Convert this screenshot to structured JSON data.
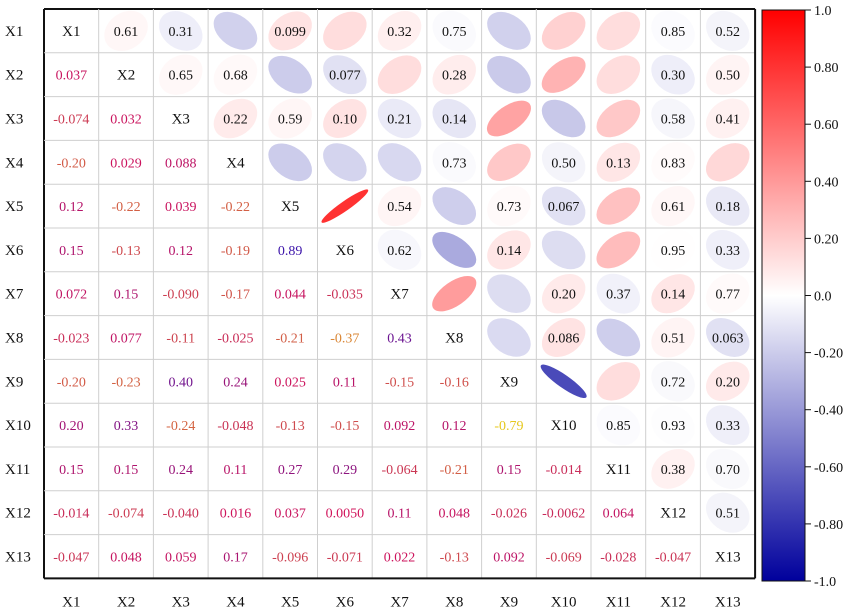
{
  "chart_data": {
    "type": "heatmap",
    "variables": [
      "X1",
      "X2",
      "X3",
      "X4",
      "X5",
      "X6",
      "X7",
      "X8",
      "X9",
      "X10",
      "X11",
      "X12",
      "X13"
    ],
    "lower_correlations": [
      [],
      [
        "0.037"
      ],
      [
        "-0.074",
        "0.032"
      ],
      [
        "-0.20",
        "0.029",
        "0.088"
      ],
      [
        "0.12",
        "-0.22",
        "0.039",
        "-0.22"
      ],
      [
        "0.15",
        "-0.13",
        "0.12",
        "-0.19",
        "0.89"
      ],
      [
        "0.072",
        "0.15",
        "-0.090",
        "-0.17",
        "0.044",
        "-0.035"
      ],
      [
        "-0.023",
        "0.077",
        "-0.11",
        "-0.025",
        "-0.21",
        "-0.37",
        "0.43"
      ],
      [
        "-0.20",
        "-0.23",
        "0.40",
        "0.24",
        "0.025",
        "0.11",
        "-0.15",
        "-0.16"
      ],
      [
        "0.20",
        "0.33",
        "-0.24",
        "-0.048",
        "-0.13",
        "-0.15",
        "0.092",
        "0.12",
        "-0.79"
      ],
      [
        "0.15",
        "0.15",
        "0.24",
        "0.11",
        "0.27",
        "0.29",
        "-0.064",
        "-0.21",
        "0.15",
        "-0.014"
      ],
      [
        "-0.014",
        "-0.074",
        "-0.040",
        "0.016",
        "0.037",
        "0.0050",
        "0.11",
        "0.048",
        "-0.026",
        "-0.0062",
        "0.064"
      ],
      [
        "-0.047",
        "0.048",
        "0.059",
        "0.17",
        "-0.096",
        "-0.071",
        "0.022",
        "-0.13",
        "0.092",
        "-0.069",
        "-0.028",
        "-0.047"
      ]
    ],
    "upper_pvalues": [
      [
        "",
        "0.61",
        "0.31",
        "",
        "0.099",
        "",
        "0.32",
        "0.75",
        "",
        "",
        "",
        "0.85",
        "0.52"
      ],
      [
        "",
        "",
        "0.65",
        "0.68",
        "",
        "0.077",
        "",
        "0.28",
        "",
        "",
        "",
        "0.30",
        "0.50"
      ],
      [
        "",
        "",
        "",
        "0.22",
        "0.59",
        "0.10",
        "0.21",
        "0.14",
        "",
        "",
        "",
        "0.58",
        "0.41"
      ],
      [
        "",
        "",
        "",
        "",
        "",
        "",
        "",
        "0.73",
        "",
        "0.50",
        "0.13",
        "0.83",
        ""
      ],
      [
        "",
        "",
        "",
        "",
        "",
        "",
        "0.54",
        "",
        "0.73",
        "0.067",
        "",
        "0.61",
        "0.18"
      ],
      [
        "",
        "",
        "",
        "",
        "",
        "",
        "0.62",
        "",
        "0.14",
        "",
        "",
        "0.95",
        "0.33"
      ],
      [
        "",
        "",
        "",
        "",
        "",
        "",
        "",
        "",
        "",
        "0.20",
        "0.37",
        "0.14",
        "0.77"
      ],
      [
        "",
        "",
        "",
        "",
        "",
        "",
        "",
        "",
        "",
        "0.086",
        "",
        "0.51",
        "0.063"
      ],
      [
        "",
        "",
        "",
        "",
        "",
        "",
        "",
        "",
        "",
        "",
        "",
        "0.72",
        "0.20"
      ],
      [
        "",
        "",
        "",
        "",
        "",
        "",
        "",
        "",
        "",
        "",
        "0.85",
        "0.93",
        "0.33"
      ],
      [
        "",
        "",
        "",
        "",
        "",
        "",
        "",
        "",
        "",
        "",
        "",
        "0.38",
        "0.70"
      ],
      [
        "",
        "",
        "",
        "",
        "",
        "",
        "",
        "",
        "",
        "",
        "",
        "",
        "0.51"
      ],
      [
        "",
        "",
        "",
        "",
        "",
        "",
        "",
        "",
        "",
        "",
        "",
        "",
        ""
      ]
    ],
    "color_scale": {
      "min": -1.0,
      "max": 1.0,
      "ticks": [
        "1.0",
        "0.80",
        "0.60",
        "0.40",
        "0.20",
        "0.0",
        "-0.20",
        "-0.40",
        "-0.60",
        "-0.80",
        "-1.0"
      ],
      "colors": {
        "negative": "#00009c",
        "mid": "#ffffff",
        "positive": "#ff0000"
      }
    },
    "legend_placement": "right",
    "grid": true
  }
}
